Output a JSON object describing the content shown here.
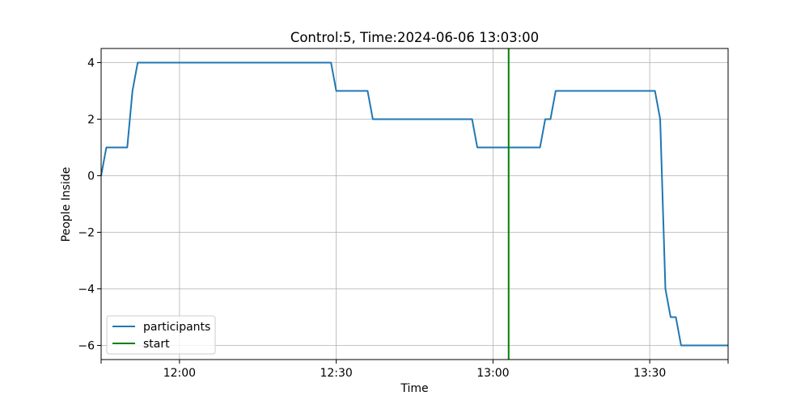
{
  "chart_data": {
    "type": "line",
    "title": "Control:5, Time:2024-06-06 13:03:00",
    "xlabel": "Time",
    "ylabel": "People Inside",
    "xlim": [
      "11:45",
      "13:45"
    ],
    "ylim": [
      -6.5,
      4.5
    ],
    "xticks": [
      {
        "value": "11:45",
        "label": ""
      },
      {
        "value": "12:00",
        "label": "12:00"
      },
      {
        "value": "12:30",
        "label": "12:30"
      },
      {
        "value": "13:00",
        "label": "13:00"
      },
      {
        "value": "13:30",
        "label": "13:30"
      },
      {
        "value": "13:45",
        "label": ""
      }
    ],
    "yticks": [
      {
        "value": -6,
        "label": "−6"
      },
      {
        "value": -4,
        "label": "−4"
      },
      {
        "value": -2,
        "label": "−2"
      },
      {
        "value": 0,
        "label": "0"
      },
      {
        "value": 2,
        "label": "2"
      },
      {
        "value": 4,
        "label": "4"
      }
    ],
    "grid": true,
    "legend_position": "lower left",
    "series": [
      {
        "name": "participants",
        "color": "#1f77b4",
        "points": [
          {
            "x": "11:45",
            "y": 0
          },
          {
            "x": "11:46",
            "y": 1
          },
          {
            "x": "11:50",
            "y": 1
          },
          {
            "x": "11:51",
            "y": 3
          },
          {
            "x": "11:52",
            "y": 4
          },
          {
            "x": "12:29",
            "y": 4
          },
          {
            "x": "12:30",
            "y": 3
          },
          {
            "x": "12:36",
            "y": 3
          },
          {
            "x": "12:37",
            "y": 2
          },
          {
            "x": "12:56",
            "y": 2
          },
          {
            "x": "12:57",
            "y": 1
          },
          {
            "x": "13:09",
            "y": 1
          },
          {
            "x": "13:10",
            "y": 2
          },
          {
            "x": "13:11",
            "y": 2
          },
          {
            "x": "13:12",
            "y": 3
          },
          {
            "x": "13:31",
            "y": 3
          },
          {
            "x": "13:32",
            "y": 2
          },
          {
            "x": "13:33",
            "y": -4
          },
          {
            "x": "13:34",
            "y": -5
          },
          {
            "x": "13:35",
            "y": -5
          },
          {
            "x": "13:36",
            "y": -6
          },
          {
            "x": "13:45",
            "y": -6
          }
        ]
      }
    ],
    "vlines": [
      {
        "name": "start",
        "x": "13:03",
        "color": "#008000"
      }
    ]
  }
}
